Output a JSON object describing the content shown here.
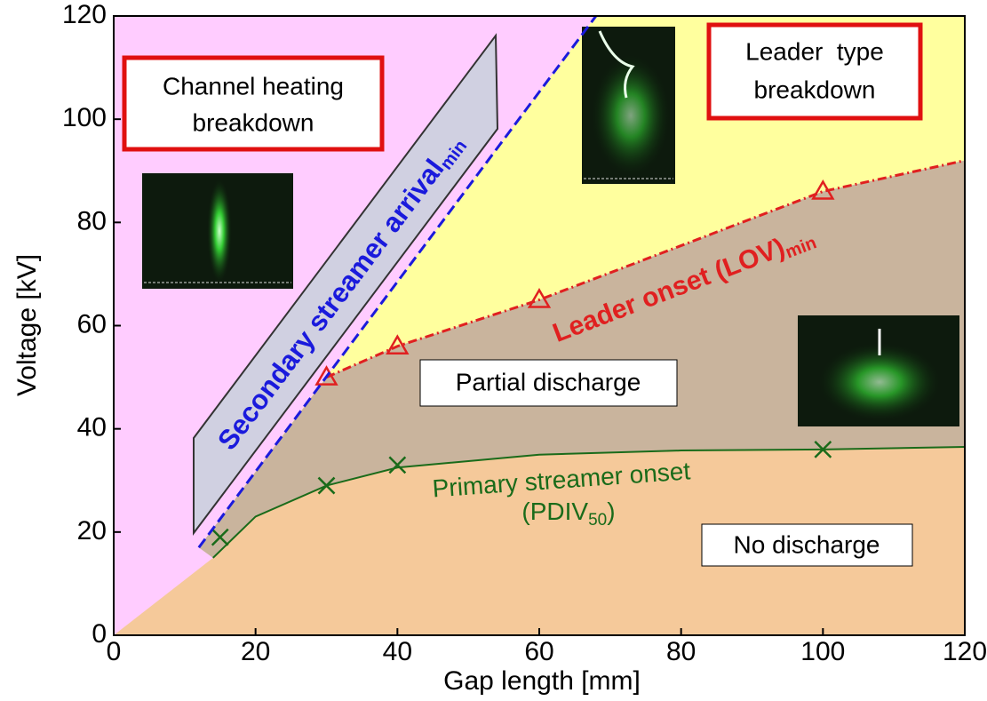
{
  "chart_data": {
    "type": "line",
    "xlabel": "Gap length [mm]",
    "ylabel": "Voltage [kV]",
    "xlim": [
      0,
      120
    ],
    "ylim": [
      0,
      120
    ],
    "xticks": [
      0,
      20,
      40,
      60,
      80,
      100,
      120
    ],
    "yticks": [
      0,
      20,
      40,
      60,
      80,
      100,
      120
    ],
    "xminor": [
      10,
      30,
      50,
      70,
      90,
      110
    ],
    "yminor": [
      10,
      30,
      50,
      70,
      90,
      110
    ],
    "grid": true,
    "region_colors": {
      "channel": "#ffccff",
      "leader": "#ffff9e",
      "partial": "#c9b49d",
      "none": "#f5c99a"
    },
    "series": [
      {
        "color": "#1a6b1a",
        "style": "solid",
        "x": [
          14,
          20,
          30,
          40,
          60,
          80,
          100,
          120
        ],
        "values": [
          15,
          23,
          29,
          32.5,
          35,
          35.8,
          36,
          36.5
        ]
      },
      {
        "color": "#1a6b1a",
        "marker": "x",
        "x": [
          15,
          30,
          40,
          100
        ],
        "values": [
          19,
          29,
          33,
          36
        ]
      },
      {
        "color": "#e02020",
        "style": "dashdot",
        "x": [
          30,
          40,
          60,
          100,
          120
        ],
        "values": [
          50,
          56,
          65,
          86,
          92
        ]
      },
      {
        "color": "#e02020",
        "marker": "triangle",
        "x": [
          30,
          40,
          60,
          100
        ],
        "values": [
          50,
          56,
          65,
          86
        ]
      },
      {
        "color": "#1a1adc",
        "style": "dashed",
        "x": [
          12,
          68
        ],
        "values": [
          17,
          120
        ]
      }
    ],
    "annotations": {
      "channel_heating": [
        "Channel heating",
        "breakdown"
      ],
      "leader_type": [
        "Leader  type",
        "breakdown"
      ],
      "partial": "Partial discharge",
      "none": "No discharge",
      "secondary": [
        "Secondary streamer arrival",
        "min"
      ],
      "leader_onset": [
        "Leader onset (LOV)",
        "min"
      ],
      "primary": [
        "Primary streamer onset",
        "(PDIV",
        "50",
        ")"
      ]
    }
  }
}
